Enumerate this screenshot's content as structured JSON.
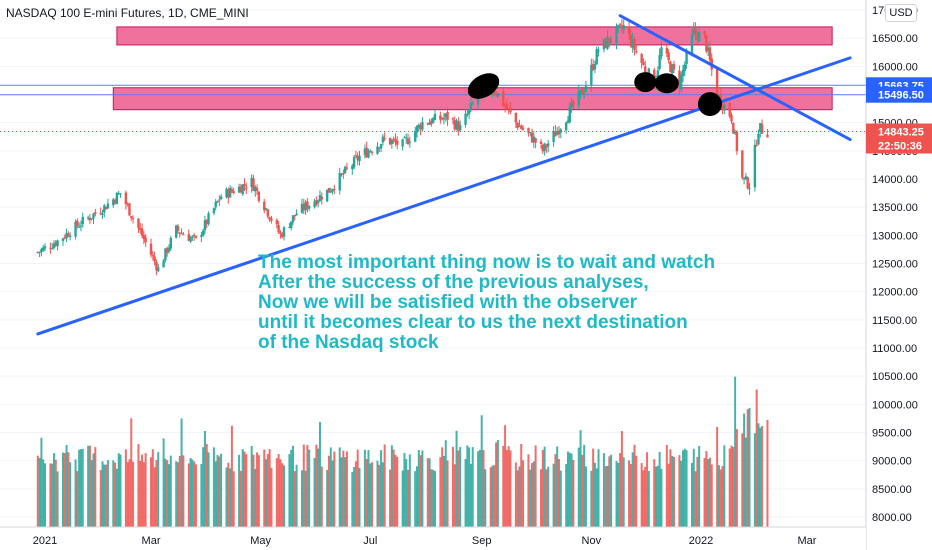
{
  "header": {
    "title": "NASDAQ 100 E-mini Futures, 1D, CME_MINI"
  },
  "currency_badge": "USD",
  "annotation": {
    "lines": [
      "The most important thing now is to wait and watch",
      "After the success of the previous analyses,",
      "Now we will be satisfied with the observer",
      "until it becomes clear to us the next destination",
      "of the Nasdaq stock"
    ]
  },
  "price_labels": {
    "upper_line": "15663.75",
    "lower_line": "15496.50",
    "last_price": "14843.25",
    "countdown": "22:50:36"
  },
  "colors": {
    "up": "#26a69a",
    "down": "#ef5350",
    "zone_fill": "#f06292",
    "zone_border": "#c2185b",
    "trendline": "#2962ff",
    "hline": "#5c7cfa",
    "annotation": "#1fb9c8",
    "last_price": "#ef5350"
  },
  "chart_data": {
    "type": "candlestick",
    "title": "NASDAQ 100 E-mini Futures, 1D, CME_MINI",
    "ylim": [
      7850,
      17000
    ],
    "y_ticks": [
      8000,
      8500,
      9000,
      9500,
      10000,
      10500,
      11000,
      11500,
      12000,
      12500,
      13000,
      13500,
      14000,
      14500,
      15000,
      15500,
      16000,
      16500,
      17000
    ],
    "y_tick_labels": [
      "8000.00",
      "8500.00",
      "9000.00",
      "9500.00",
      "10000.00",
      "10500.00",
      "11000.00",
      "11500.00",
      "12000.00",
      "12500.00",
      "13000.00",
      "13500.00",
      "14000.00",
      "14500.00",
      "15000.00",
      "15500.00",
      "16000.00",
      "16500.00",
      "17000.00"
    ],
    "x_labels": [
      "2021",
      "Mar",
      "May",
      "Jul",
      "Sep",
      "Nov",
      "2022",
      "Mar"
    ],
    "price_path": [
      [
        "2020-12-28",
        12700
      ],
      [
        "2021-01-08",
        12900
      ],
      [
        "2021-01-20",
        13200
      ],
      [
        "2021-02-03",
        13500
      ],
      [
        "2021-02-12",
        13750
      ],
      [
        "2021-02-24",
        13000
      ],
      [
        "2021-03-05",
        12400
      ],
      [
        "2021-03-15",
        13100
      ],
      [
        "2021-03-26",
        12900
      ],
      [
        "2021-04-09",
        13700
      ],
      [
        "2021-04-26",
        13950
      ],
      [
        "2021-05-12",
        13000
      ],
      [
        "2021-05-21",
        13400
      ],
      [
        "2021-06-08",
        13800
      ],
      [
        "2021-06-25",
        14400
      ],
      [
        "2021-07-09",
        14700
      ],
      [
        "2021-07-19",
        14600
      ],
      [
        "2021-07-30",
        15000
      ],
      [
        "2021-08-13",
        15100
      ],
      [
        "2021-08-20",
        14900
      ],
      [
        "2021-08-31",
        15550
      ],
      [
        "2021-09-08",
        15600
      ],
      [
        "2021-09-20",
        15000
      ],
      [
        "2021-09-30",
        14700
      ],
      [
        "2021-10-05",
        14500
      ],
      [
        "2021-10-15",
        14950
      ],
      [
        "2021-10-28",
        15600
      ],
      [
        "2021-11-05",
        16300
      ],
      [
        "2021-11-19",
        16700
      ],
      [
        "2021-11-30",
        16000
      ],
      [
        "2021-12-06",
        15700
      ],
      [
        "2021-12-10",
        16300
      ],
      [
        "2021-12-20",
        15700
      ],
      [
        "2021-12-28",
        16600
      ],
      [
        "2022-01-03",
        16500
      ],
      [
        "2022-01-10",
        15500
      ],
      [
        "2022-01-18",
        15100
      ],
      [
        "2022-01-24",
        14000
      ],
      [
        "2022-01-28",
        13900
      ],
      [
        "2022-02-02",
        14900
      ],
      [
        "2022-02-07",
        14843
      ]
    ],
    "volume_avg": [
      8800,
      9300
    ],
    "zones": [
      {
        "from": "2021-02-10",
        "to": "2022-03-15",
        "low": 16380,
        "high": 16700
      },
      {
        "from": "2021-02-08",
        "to": "2022-03-15",
        "low": 15230,
        "high": 15620
      }
    ],
    "horizontal_lines": [
      15663.75,
      15496.5
    ],
    "trendlines": [
      {
        "from": [
          "2020-12-28",
          11250
        ],
        "to": [
          "2022-03-25",
          16150
        ]
      },
      {
        "from": [
          "2021-11-17",
          16900
        ],
        "to": [
          "2022-03-25",
          14700
        ]
      }
    ],
    "last_price": 14843.25
  }
}
